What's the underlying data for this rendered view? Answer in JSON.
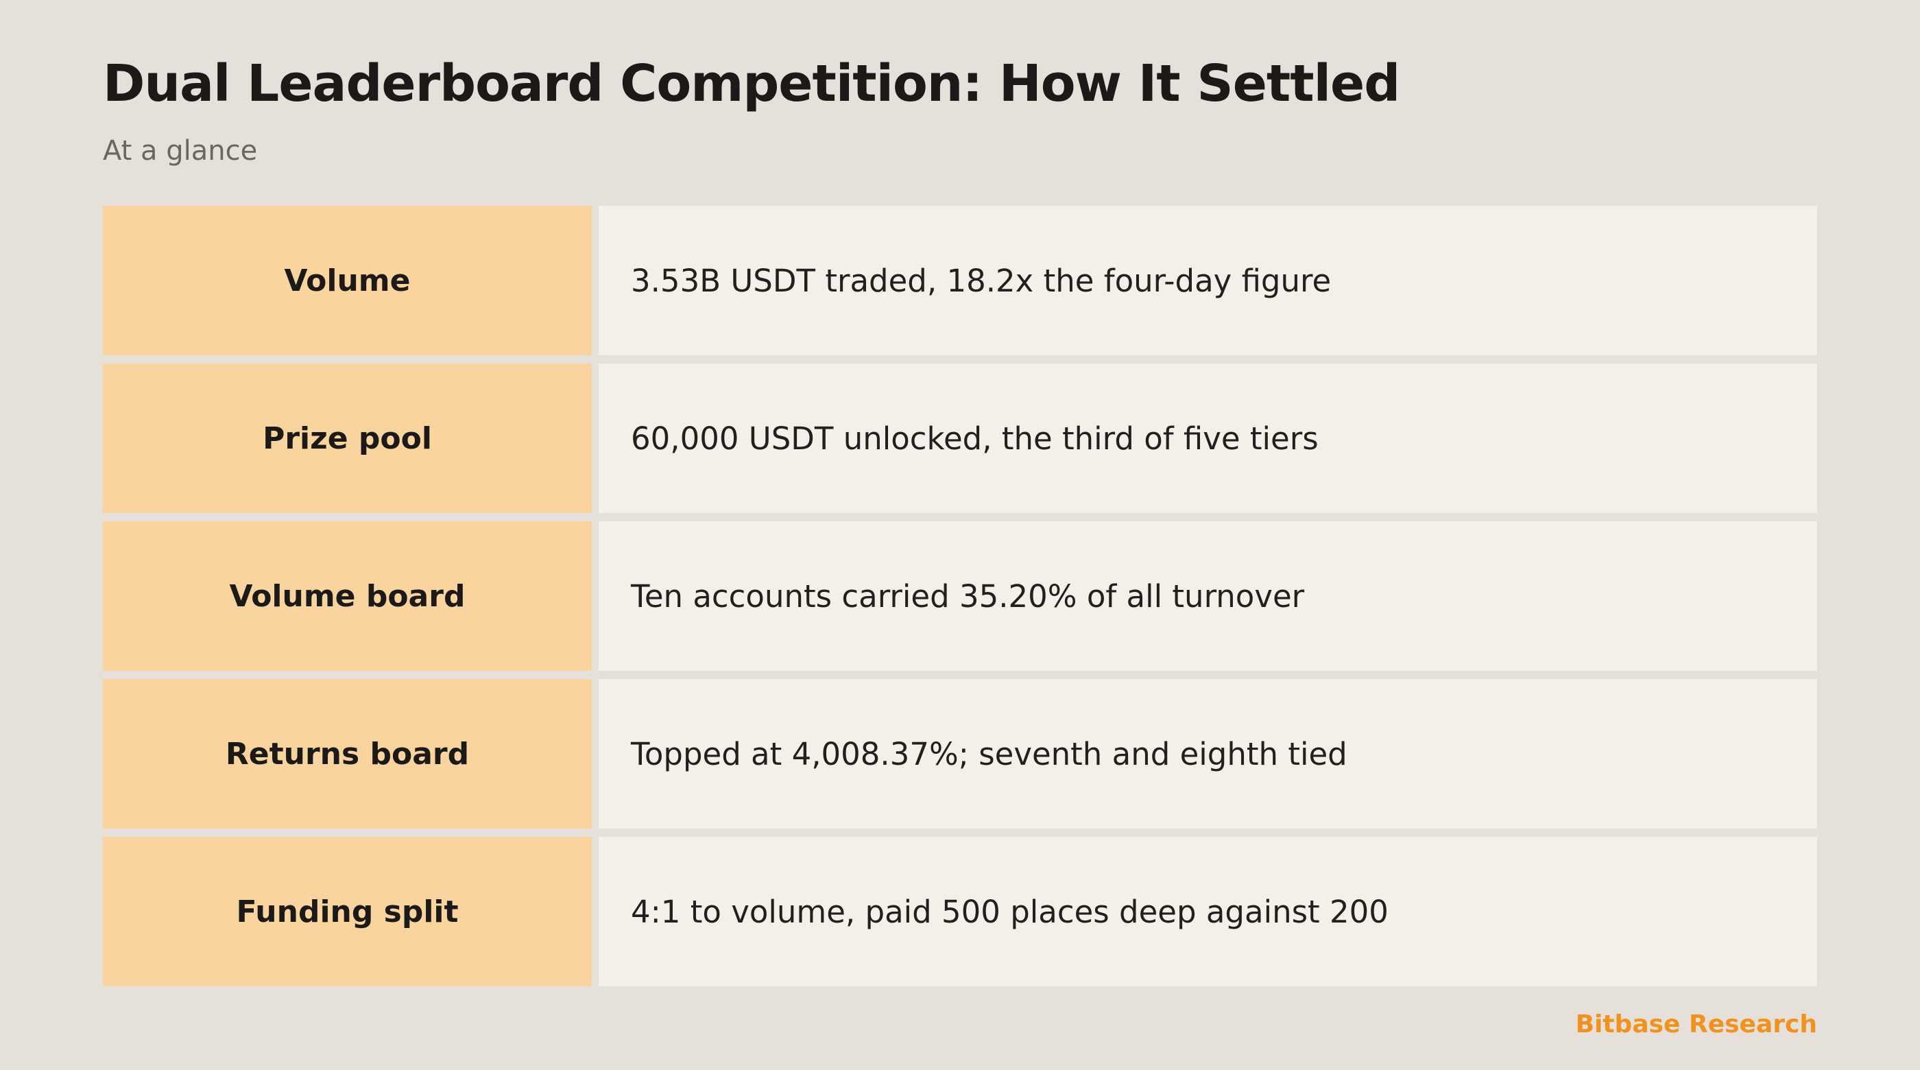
{
  "header": {
    "title": "Dual Leaderboard Competition: How It Settled",
    "subtitle": "At a glance"
  },
  "rows": [
    {
      "label": "Volume",
      "value": "3.53B USDT traded, 18.2x the four-day figure"
    },
    {
      "label": "Prize pool",
      "value": "60,000 USDT unlocked, the third of five tiers"
    },
    {
      "label": "Volume board",
      "value": "Ten accounts carried 35.20% of all turnover"
    },
    {
      "label": "Returns board",
      "value": "Topped at 4,008.37%; seventh and eighth tied"
    },
    {
      "label": "Funding split",
      "value": "4:1 to volume, paid 500 places deep against 200"
    }
  ],
  "footer": {
    "brand": "Bitbase Research"
  },
  "colors": {
    "background": "#e5e0da",
    "label_fill": "#f9d49e",
    "value_fill": "#f3f0ea",
    "brand_accent": "#f1921f"
  }
}
